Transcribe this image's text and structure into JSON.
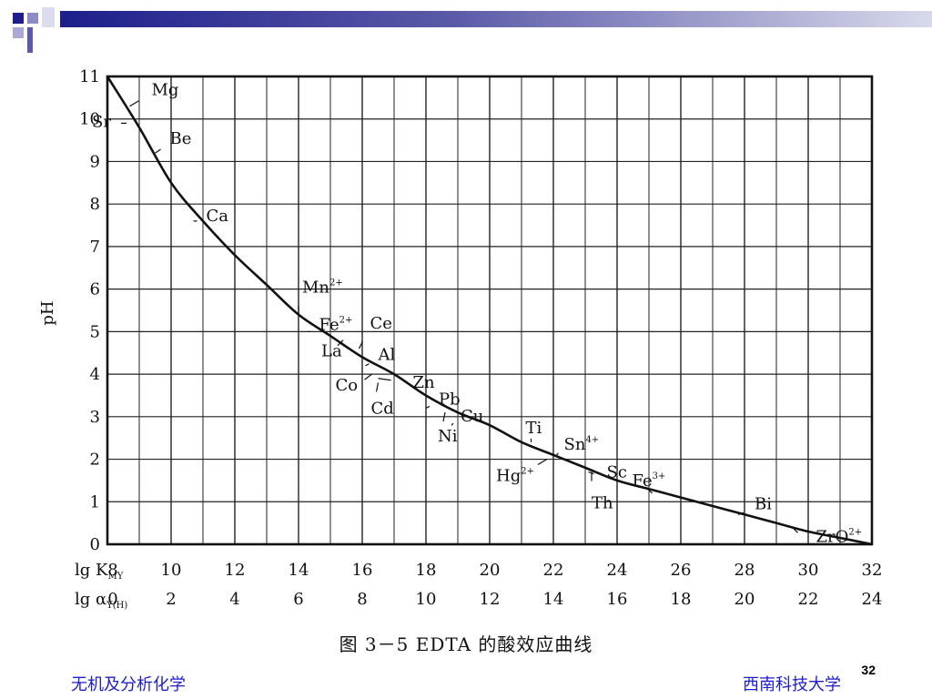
{
  "slide": {
    "footer_left": "无机及分析化学",
    "footer_right": "西南科技大学",
    "page_number": "32",
    "colors": {
      "header_dark": "#1e1e8c",
      "header_light": "#d9d9ec",
      "footer_text": "#1c1cd0"
    }
  },
  "chart_data": {
    "type": "line",
    "caption": "图 3－5   EDTA 的酸效应曲线",
    "ylabel": "pH",
    "x_axis_label_1": "lg K",
    "x_axis_label_1_sub": "MY",
    "x_axis_label_2": "lg α",
    "x_axis_label_2_sub": "Y(H)",
    "xlim": [
      8,
      32
    ],
    "ylim": [
      0,
      11
    ],
    "grid": true,
    "x_ticks_lgK": [
      8,
      10,
      12,
      14,
      16,
      18,
      20,
      22,
      24,
      26,
      28,
      30,
      32
    ],
    "x_ticks_lgalpha": [
      0,
      2,
      4,
      6,
      8,
      10,
      12,
      14,
      16,
      18,
      20,
      22,
      24
    ],
    "y_ticks": [
      0,
      1,
      2,
      3,
      4,
      5,
      6,
      7,
      8,
      9,
      10,
      11
    ],
    "series": [
      {
        "x": [
          8,
          9,
          10,
          11,
          12,
          13,
          14,
          15,
          16,
          17,
          18,
          19,
          20,
          21,
          22,
          23,
          24,
          25,
          26,
          27,
          28,
          29,
          30,
          31,
          32
        ],
        "y": [
          11.0,
          9.8,
          8.5,
          7.6,
          6.8,
          6.1,
          5.4,
          4.9,
          4.4,
          4.0,
          3.5,
          3.1,
          2.8,
          2.4,
          2.1,
          1.8,
          1.5,
          1.3,
          1.1,
          0.9,
          0.7,
          0.5,
          0.3,
          0.15,
          0.0
        ]
      }
    ],
    "annotations": [
      {
        "text": "Sr",
        "sup": "",
        "x": 8.6,
        "y": 9.9
      },
      {
        "text": "Mg",
        "sup": "",
        "x": 8.7,
        "y": 10.3
      },
      {
        "text": "Be",
        "sup": "",
        "x": 9.5,
        "y": 9.2
      },
      {
        "text": "Ca",
        "sup": "",
        "x": 10.7,
        "y": 7.6
      },
      {
        "text": "Mn",
        "sup": "2+",
        "x": 14.0,
        "y": 5.4
      },
      {
        "text": "Fe",
        "sup": "2+",
        "x": 14.3,
        "y": 5.0
      },
      {
        "text": "La",
        "sup": "",
        "x": 15.4,
        "y": 4.8
      },
      {
        "text": "Ce",
        "sup": "",
        "x": 15.9,
        "y": 4.6
      },
      {
        "text": "Al",
        "sup": "",
        "x": 16.1,
        "y": 4.2
      },
      {
        "text": "Co",
        "sup": "",
        "x": 16.3,
        "y": 4.0
      },
      {
        "text": "Zn",
        "sup": "",
        "x": 16.5,
        "y": 3.9
      },
      {
        "text": "Cd",
        "sup": "",
        "x": 16.5,
        "y": 3.8
      },
      {
        "text": "Pb",
        "sup": "",
        "x": 18.0,
        "y": 3.2
      },
      {
        "text": "Ni",
        "sup": "",
        "x": 18.6,
        "y": 3.1
      },
      {
        "text": "Cu",
        "sup": "",
        "x": 18.8,
        "y": 2.8
      },
      {
        "text": "Ti",
        "sup": "",
        "x": 21.3,
        "y": 2.4
      },
      {
        "text": "Sn",
        "sup": "4+",
        "x": 22.1,
        "y": 2.1
      },
      {
        "text": "Hg",
        "sup": "2+",
        "x": 21.8,
        "y": 2.0
      },
      {
        "text": "Sc",
        "sup": "",
        "x": 23.1,
        "y": 1.7
      },
      {
        "text": "Th",
        "sup": "",
        "x": 23.2,
        "y": 1.7
      },
      {
        "text": "Fe",
        "sup": "3+",
        "x": 25.1,
        "y": 1.2
      },
      {
        "text": "Bi",
        "sup": "",
        "x": 27.8,
        "y": 0.7
      },
      {
        "text": "ZrO",
        "sup": "2+",
        "x": 29.5,
        "y": 0.4
      }
    ]
  }
}
